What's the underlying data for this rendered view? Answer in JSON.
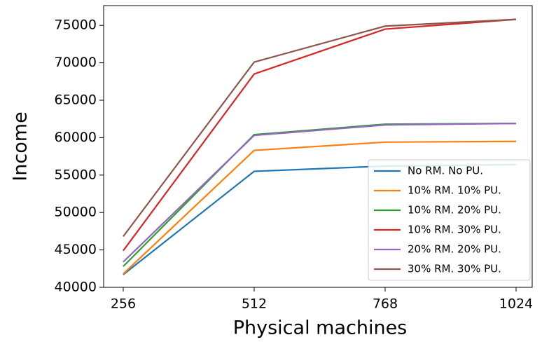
{
  "chart_data": {
    "type": "line",
    "x_label": "Physical machines",
    "y_label": "Income",
    "x": [
      256,
      512,
      768,
      1024
    ],
    "series": [
      {
        "name": "No RM. No PU.",
        "color": "#1f77b4",
        "values": [
          41700,
          55500,
          56200,
          56400
        ]
      },
      {
        "name": "10% RM. 10% PU.",
        "color": "#ff7f0e",
        "values": [
          41800,
          58300,
          59400,
          59500
        ]
      },
      {
        "name": "10% RM. 20% PU.",
        "color": "#2ca02c",
        "values": [
          42800,
          60400,
          61800,
          61900
        ]
      },
      {
        "name": "10% RM. 30% PU.",
        "color": "#d62728",
        "values": [
          44900,
          68500,
          74500,
          75800
        ]
      },
      {
        "name": "20% RM. 20% PU.",
        "color": "#9467bd",
        "values": [
          43400,
          60300,
          61700,
          61900
        ]
      },
      {
        "name": "30% RM. 30% PU.",
        "color": "#8c564b",
        "values": [
          46800,
          70100,
          74900,
          75800
        ]
      }
    ],
    "xlim": [
      217.7,
      1055.5
    ],
    "xticks": [
      256,
      512,
      768,
      1024
    ],
    "ylim": [
      40000,
      77640
    ],
    "yticks": [
      40000,
      45000,
      50000,
      55000,
      60000,
      65000,
      70000,
      75000
    ],
    "legend": "lower right"
  }
}
